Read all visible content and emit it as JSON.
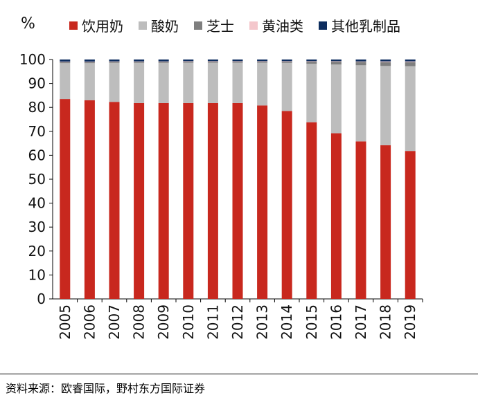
{
  "unit": "%",
  "source": "资料来源：欧睿国际，野村东方国际证券",
  "chart_data": {
    "type": "bar",
    "stacked": true,
    "categories": [
      "2005",
      "2006",
      "2007",
      "2008",
      "2009",
      "2010",
      "2011",
      "2012",
      "2013",
      "2014",
      "2015",
      "2016",
      "2017",
      "2018",
      "2019"
    ],
    "series": [
      {
        "name": "饮用奶",
        "color": "#c8281e",
        "values": [
          83.5,
          83.0,
          82.3,
          81.8,
          81.8,
          81.8,
          81.8,
          81.8,
          80.8,
          78.5,
          73.8,
          69.2,
          65.8,
          64.2,
          61.8
        ]
      },
      {
        "name": "酸奶",
        "color": "#bdbdbd",
        "values": [
          15.0,
          15.5,
          16.3,
          16.8,
          16.8,
          16.9,
          16.9,
          16.9,
          17.9,
          20.1,
          24.4,
          28.7,
          31.8,
          33.1,
          35.4
        ]
      },
      {
        "name": "芝士",
        "color": "#7f7f7f",
        "values": [
          0.4,
          0.4,
          0.4,
          0.4,
          0.4,
          0.4,
          0.4,
          0.4,
          0.4,
          0.5,
          0.9,
          1.2,
          1.4,
          1.6,
          1.7
        ]
      },
      {
        "name": "黄油类",
        "color": "#f4c7cc",
        "values": [
          0.2,
          0.2,
          0.2,
          0.2,
          0.2,
          0.2,
          0.2,
          0.2,
          0.2,
          0.2,
          0.2,
          0.2,
          0.2,
          0.3,
          0.3
        ]
      },
      {
        "name": "其他乳制品",
        "color": "#0d2d5e",
        "values": [
          0.9,
          0.9,
          0.8,
          0.8,
          0.8,
          0.7,
          0.7,
          0.7,
          0.7,
          0.7,
          0.7,
          0.7,
          0.8,
          0.8,
          0.8
        ]
      }
    ],
    "ylim": [
      0,
      100
    ],
    "yticks": [
      "0",
      "10",
      "20",
      "30",
      "40",
      "50",
      "60",
      "70",
      "80",
      "90",
      "100"
    ],
    "xlabel": "",
    "ylabel": "",
    "legend_position": "top"
  }
}
